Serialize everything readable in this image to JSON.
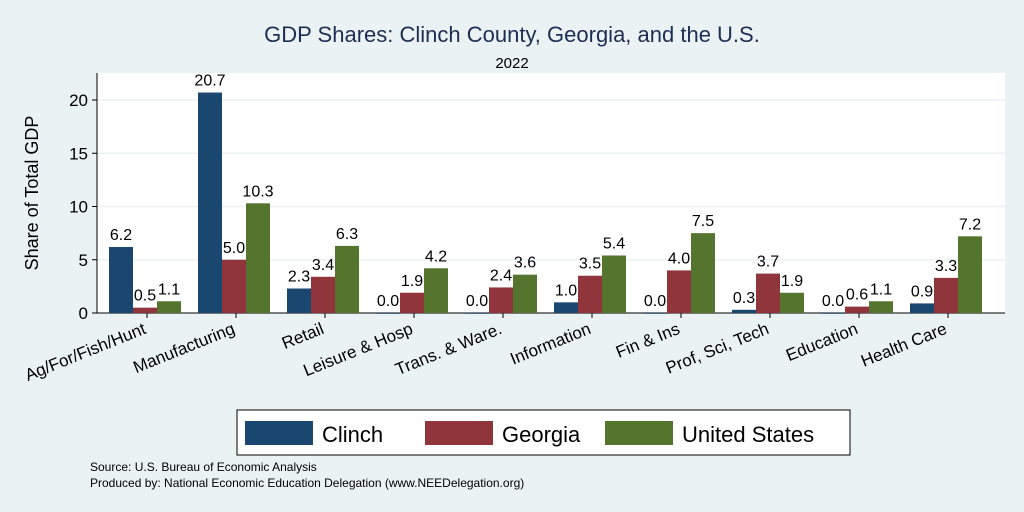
{
  "chart_data": {
    "type": "bar",
    "title": "GDP Shares: Clinch County, Georgia, and the U.S.",
    "subtitle": "2022",
    "ylabel": "Share of Total GDP",
    "xlabel": "",
    "ylim": [
      0,
      22.5
    ],
    "yticks": [
      0,
      5,
      10,
      15,
      20
    ],
    "grid": true,
    "legend_position": "bottom",
    "categories": [
      "Ag/For/Fish/Hunt",
      "Manufacturing",
      "Retail",
      "Leisure & Hosp",
      "Trans. & Ware.",
      "Information",
      "Fin & Ins",
      "Prof, Sci, Tech",
      "Education",
      "Health Care"
    ],
    "series": [
      {
        "name": "Clinch",
        "color": "#1a476f",
        "values": [
          6.2,
          20.7,
          2.3,
          0.0,
          0.0,
          1.0,
          0.0,
          0.3,
          0.0,
          0.9
        ]
      },
      {
        "name": "Georgia",
        "color": "#90353b",
        "values": [
          0.5,
          5.0,
          3.4,
          1.9,
          2.4,
          3.5,
          4.0,
          3.7,
          0.6,
          3.3
        ]
      },
      {
        "name": "United States",
        "color": "#55752f",
        "values": [
          1.1,
          10.3,
          6.3,
          4.2,
          3.6,
          5.4,
          7.5,
          1.9,
          1.1,
          7.2
        ]
      }
    ]
  },
  "notes": {
    "source": "Source: U.S. Bureau of Economic Analysis",
    "produced": "Produced by: National Economic Education Delegation (www.NEEDelegation.org)"
  }
}
